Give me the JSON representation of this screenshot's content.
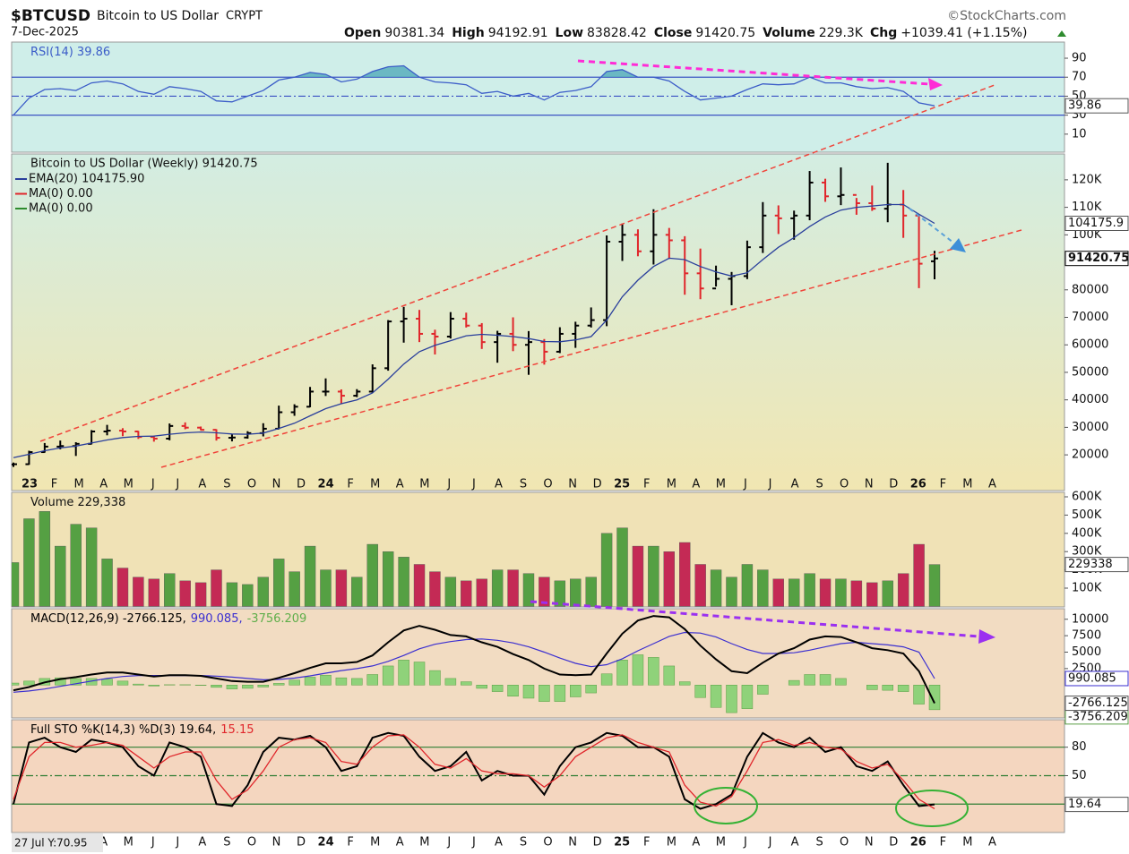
{
  "header": {
    "symbol": "$BTCUSD",
    "name": "Bitcoin to US Dollar",
    "exchange": "CRYPT",
    "date": "7-Dec-2025",
    "copyright": "©StockCharts.com",
    "quote": [
      {
        "label": "Open",
        "value": "90381.34"
      },
      {
        "label": "High",
        "value": "94192.91"
      },
      {
        "label": "Low",
        "value": "83828.42"
      },
      {
        "label": "Close",
        "value": "91420.75"
      },
      {
        "label": "Volume",
        "value": "229.3K"
      },
      {
        "label": "Chg",
        "value": "+1039.41 (+1.15%)"
      }
    ],
    "cursor_readout": "27 Jul Y:70.95",
    "xticks": [
      "23",
      "F",
      "M",
      "A",
      "M",
      "J",
      "J",
      "A",
      "S",
      "O",
      "N",
      "D",
      "24",
      "F",
      "M",
      "A",
      "M",
      "J",
      "J",
      "A",
      "S",
      "O",
      "N",
      "D",
      "25",
      "F",
      "M",
      "A",
      "M",
      "J",
      "J",
      "A",
      "S",
      "O",
      "N",
      "D",
      "26",
      "F",
      "M",
      "A"
    ]
  },
  "chart_data": [
    {
      "type": "line",
      "legend": [
        "RSI(14) 39.86"
      ],
      "ylim": [
        -9,
        107
      ],
      "yticks": [
        10,
        30,
        50,
        70,
        90
      ],
      "hlines": [
        30,
        50,
        70
      ],
      "hline_color": "#3b4fc4",
      "area_color": "#4aa5b5",
      "series": [
        {
          "color": "#3b5cc8",
          "values": [
            30,
            48,
            57,
            58,
            56,
            64,
            66,
            63,
            55,
            52,
            60,
            58,
            55,
            45,
            44,
            50,
            56,
            67,
            70,
            75,
            73,
            65,
            68,
            76,
            81,
            82,
            70,
            65,
            64,
            62,
            53,
            55,
            50,
            53,
            46,
            54,
            56,
            60,
            76,
            78,
            70,
            70,
            66,
            55,
            46,
            48,
            50,
            57,
            63,
            62,
            63,
            70,
            64,
            64,
            60,
            58,
            59,
            55,
            43,
            39.86
          ]
        }
      ]
    },
    {
      "type": "ohlc",
      "title": "Bitcoin to US Dollar (Weekly) 91420.75",
      "ylim": [
        11900,
        129400
      ],
      "yticks": [
        20000,
        30000,
        40000,
        50000,
        60000,
        70000,
        80000,
        {
          "value": 100000,
          "label": "100K"
        },
        {
          "value": 110000,
          "label": "110K"
        },
        {
          "value": 120000,
          "label": "120K"
        }
      ],
      "up_color": "#000000",
      "down_color": "#e0262b",
      "open": [
        16500,
        16600,
        21000,
        23000,
        23200,
        24000,
        28500,
        28800,
        28500,
        26500,
        25900,
        30500,
        29900,
        29100,
        26200,
        26300,
        27900,
        29500,
        35500,
        37500,
        43000,
        43000,
        41500,
        43000,
        51500,
        68500,
        69500,
        64000,
        63000,
        69500,
        67000,
        61000,
        64000,
        60000,
        61000,
        57500,
        64000,
        67000,
        69000,
        97500,
        100000,
        94000,
        100000,
        98000,
        86000,
        80500,
        84000,
        85000,
        95500,
        107000,
        106000,
        107000,
        119000,
        114000,
        114500,
        111500,
        109500,
        111000,
        107000,
        90381.34
      ],
      "high": [
        17200,
        21500,
        24300,
        25200,
        24600,
        29000,
        30900,
        29700,
        28700,
        27000,
        31400,
        31800,
        30300,
        29300,
        27400,
        28600,
        31500,
        37900,
        38400,
        44700,
        47800,
        43800,
        43900,
        52900,
        69000,
        73800,
        72700,
        65500,
        71900,
        71700,
        67900,
        65100,
        70000,
        65000,
        62100,
        66400,
        68400,
        73600,
        99800,
        104100,
        102000,
        109300,
        102500,
        99500,
        95000,
        88800,
        86500,
        97900,
        111900,
        110700,
        108800,
        123200,
        120400,
        124500,
        113400,
        117900,
        126200,
        116300,
        107500,
        94192.91
      ],
      "low": [
        15600,
        16400,
        20800,
        22000,
        19600,
        23800,
        27100,
        26800,
        25800,
        24800,
        25300,
        29300,
        28900,
        25200,
        24900,
        25900,
        26700,
        29300,
        34200,
        37300,
        41400,
        38600,
        41000,
        42700,
        50600,
        60800,
        61000,
        56500,
        62300,
        66300,
        58500,
        53500,
        57700,
        49100,
        52800,
        57000,
        58900,
        66300,
        66800,
        90500,
        92200,
        89200,
        91200,
        78200,
        76600,
        81200,
        74400,
        83900,
        93400,
        100300,
        98200,
        105300,
        112000,
        110800,
        107300,
        108700,
        104600,
        98900,
        80600,
        83828.42
      ],
      "close": [
        16600,
        21000,
        23000,
        23200,
        24000,
        28500,
        28800,
        28500,
        26500,
        25900,
        30500,
        29900,
        29100,
        26200,
        26300,
        27900,
        29500,
        35500,
        37500,
        43000,
        43000,
        41500,
        43000,
        51500,
        68500,
        69500,
        64000,
        63000,
        69500,
        67000,
        61000,
        64000,
        60000,
        61000,
        57500,
        64000,
        67000,
        69000,
        97500,
        100000,
        94000,
        100000,
        98000,
        86000,
        80500,
        84000,
        85000,
        95500,
        107000,
        106000,
        107000,
        119000,
        114000,
        114500,
        111500,
        109500,
        111000,
        107000,
        89500,
        91420.75
      ],
      "overlays": [
        {
          "name": "EMA(20) 104175.90",
          "color": "#2a3f9c",
          "values": [
            19000,
            20200,
            21500,
            22500,
            23200,
            24300,
            25400,
            26300,
            26700,
            26800,
            27500,
            28000,
            28300,
            28000,
            27600,
            27500,
            27900,
            29600,
            31500,
            34200,
            36800,
            38600,
            40000,
            42500,
            47500,
            53000,
            57500,
            59800,
            61500,
            63300,
            63800,
            63500,
            63000,
            62300,
            61200,
            61100,
            61800,
            63000,
            69000,
            77500,
            83500,
            88500,
            91500,
            91000,
            88500,
            86500,
            85000,
            86200,
            91000,
            95500,
            99000,
            103000,
            106500,
            109000,
            110000,
            110500,
            111000,
            111000,
            107500,
            104175.9
          ]
        },
        {
          "name": "MA(0) 0.00",
          "color": "#e0262b"
        },
        {
          "name": "MA(0) 0.00",
          "color": "#2e8b2e"
        }
      ]
    },
    {
      "type": "bar",
      "legend": [
        "Volume 229,338"
      ],
      "ylim": [
        -3000,
        624500
      ],
      "yticks": [
        {
          "value": 100000,
          "label": "100K"
        },
        {
          "value": 200000,
          "label": "200K"
        },
        {
          "value": 300000,
          "label": "300K"
        },
        {
          "value": 400000,
          "label": "400K"
        },
        {
          "value": 500000,
          "label": "500K"
        },
        {
          "value": 600000,
          "label": "600K"
        }
      ],
      "up_color": "#55a043",
      "down_color": "#c42a55",
      "values": [
        240000,
        480000,
        520000,
        330000,
        450000,
        430000,
        260000,
        210000,
        160000,
        150000,
        180000,
        140000,
        130000,
        200000,
        130000,
        120000,
        160000,
        260000,
        190000,
        330000,
        200000,
        200000,
        160000,
        340000,
        300000,
        270000,
        230000,
        190000,
        160000,
        140000,
        150000,
        200000,
        200000,
        180000,
        160000,
        140000,
        150000,
        160000,
        400000,
        430000,
        330000,
        330000,
        300000,
        350000,
        230000,
        200000,
        160000,
        230000,
        200000,
        150000,
        150000,
        180000,
        150000,
        150000,
        140000,
        130000,
        140000,
        180000,
        340000,
        229338
      ]
    },
    {
      "type": "macd",
      "legend": [
        "MACD(12,26,9) -2766.125,",
        "990.085,",
        "-3756.209"
      ],
      "ylim": [
        -5000,
        11600
      ],
      "yticks": [
        2500,
        5000,
        7500,
        10000
      ],
      "series": [
        {
          "color": "#000000",
          "values": [
            -800,
            -300,
            400,
            900,
            1200,
            1600,
            1900,
            1900,
            1600,
            1300,
            1500,
            1500,
            1400,
            1000,
            600,
            500,
            500,
            1100,
            1800,
            2600,
            3300,
            3300,
            3500,
            4500,
            6500,
            8300,
            9000,
            8400,
            7600,
            7400,
            6500,
            5800,
            4700,
            3800,
            2500,
            1600,
            1500,
            1600,
            4800,
            7800,
            9800,
            10500,
            10300,
            8500,
            6000,
            3900,
            2100,
            1800,
            3400,
            4800,
            5600,
            6900,
            7400,
            7300,
            6500,
            5600,
            5300,
            4800,
            2100,
            -2766.125
          ]
        },
        {
          "color": "#3b2fd0",
          "values": [
            -1100,
            -900,
            -600,
            -200,
            200,
            600,
            1000,
            1300,
            1450,
            1450,
            1450,
            1450,
            1450,
            1350,
            1200,
            1000,
            800,
            850,
            1050,
            1400,
            1800,
            2200,
            2500,
            2900,
            3600,
            4500,
            5500,
            6200,
            6600,
            6900,
            7000,
            6800,
            6400,
            5800,
            5000,
            4100,
            3300,
            2800,
            3100,
            4000,
            5200,
            6300,
            7400,
            8000,
            7900,
            7300,
            6300,
            5400,
            4800,
            4800,
            4900,
            5300,
            5800,
            6300,
            6500,
            6300,
            6100,
            5800,
            5000,
            990.085
          ]
        },
        {
          "color": "#8fd27a",
          "values": [
            300,
            600,
            1000,
            1100,
            1000,
            1000,
            900,
            600,
            150,
            -150,
            50,
            50,
            -50,
            -350,
            -600,
            -500,
            -300,
            250,
            750,
            1200,
            1500,
            1100,
            1000,
            1600,
            2900,
            3800,
            3500,
            2200,
            1000,
            500,
            -500,
            -1000,
            -1700,
            -2000,
            -2500,
            -2500,
            -1800,
            -1200,
            1700,
            3800,
            4600,
            4200,
            2900,
            500,
            -1900,
            -3400,
            -4200,
            -3600,
            -1400,
            0,
            700,
            1600,
            1600,
            1000,
            0,
            -700,
            -800,
            -1000,
            -2900,
            -3756.209
          ]
        }
      ]
    },
    {
      "type": "line",
      "legend": [
        "Full STO %K(14,3) %D(3) 19.64,",
        "15.15"
      ],
      "ylim": [
        -10,
        109
      ],
      "yticks": [
        50,
        80
      ],
      "hlines": [
        20,
        50,
        80
      ],
      "hline_color": "#2e7d32",
      "series": [
        {
          "color": "#000000",
          "values": [
            20,
            85,
            90,
            80,
            75,
            88,
            85,
            80,
            60,
            50,
            85,
            80,
            70,
            20,
            18,
            40,
            75,
            90,
            88,
            92,
            80,
            55,
            60,
            90,
            95,
            92,
            70,
            55,
            60,
            75,
            45,
            55,
            50,
            50,
            30,
            60,
            80,
            85,
            95,
            92,
            80,
            80,
            70,
            25,
            15,
            20,
            30,
            70,
            95,
            85,
            80,
            90,
            75,
            80,
            60,
            55,
            65,
            40,
            18,
            19.64
          ]
        },
        {
          "color": "#e0262b",
          "values": [
            25,
            70,
            85,
            85,
            80,
            82,
            85,
            82,
            70,
            58,
            70,
            75,
            75,
            45,
            25,
            35,
            55,
            80,
            88,
            90,
            85,
            65,
            62,
            80,
            92,
            93,
            80,
            62,
            58,
            68,
            55,
            52,
            52,
            50,
            38,
            50,
            70,
            80,
            90,
            93,
            85,
            80,
            75,
            40,
            22,
            18,
            28,
            55,
            85,
            88,
            82,
            85,
            80,
            78,
            65,
            58,
            62,
            45,
            25,
            15.15
          ]
        }
      ]
    }
  ]
}
